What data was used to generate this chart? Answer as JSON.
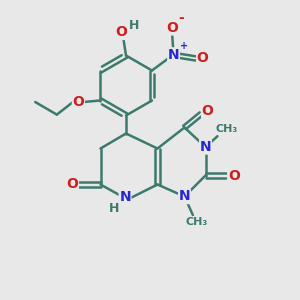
{
  "bg_color": "#e8e8e8",
  "bond_color": "#3d7a6e",
  "n_color": "#2828cc",
  "o_color": "#cc2020",
  "h_color": "#3d7a6e",
  "bond_width": 1.8,
  "font_size_atom": 10,
  "fig_size": [
    3.0,
    3.0
  ],
  "dpi": 100,
  "xlim": [
    0,
    10
  ],
  "ylim": [
    0,
    10
  ]
}
